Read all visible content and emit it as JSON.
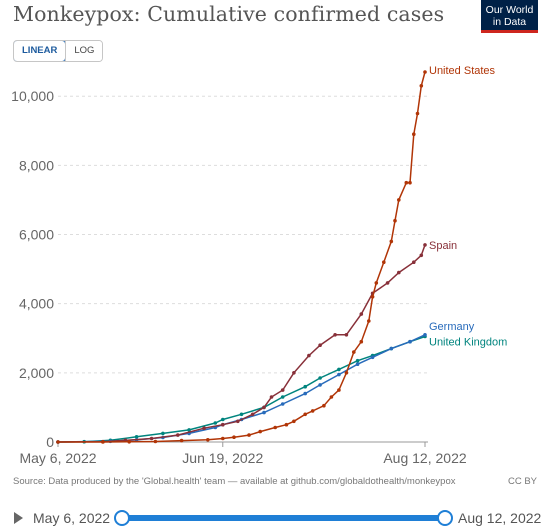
{
  "header": {
    "title": "Monkeypox: Cumulative confirmed cases",
    "logo_line1": "Our World",
    "logo_line2": "in Data"
  },
  "scale_toggle": {
    "linear": "LINEAR",
    "log": "LOG",
    "selected": "LINEAR"
  },
  "footer": {
    "source": "Source: Data produced by the 'Global.health' team — available at github.com/globaldothealth/monkeypox",
    "license": "CC BY"
  },
  "timeline": {
    "start": "May 6, 2022",
    "end": "Aug 12, 2022"
  },
  "chart_data": {
    "type": "line",
    "title": "Monkeypox: Cumulative confirmed cases",
    "ylim": [
      0,
      10700
    ],
    "yticks": [
      0,
      2000,
      4000,
      6000,
      8000,
      10000
    ],
    "ytick_labels": [
      "0",
      "2,000",
      "4,000",
      "6,000",
      "8,000",
      "10,000"
    ],
    "xlim": [
      "2022-05-06",
      "2022-08-12"
    ],
    "xticks": [
      "2022-05-06",
      "2022-06-19",
      "2022-08-12"
    ],
    "xtick_labels": [
      "May 6, 2022",
      "Jun 19, 2022",
      "Aug 12, 2022"
    ],
    "grid": "horizontal dashed",
    "legend": "labels at line ends",
    "series": [
      {
        "name": "United States",
        "color": "#b13507",
        "points": [
          [
            "2022-05-06",
            0
          ],
          [
            "2022-05-18",
            1
          ],
          [
            "2022-05-25",
            5
          ],
          [
            "2022-06-01",
            15
          ],
          [
            "2022-06-08",
            40
          ],
          [
            "2022-06-15",
            65
          ],
          [
            "2022-06-19",
            100
          ],
          [
            "2022-06-22",
            140
          ],
          [
            "2022-06-26",
            200
          ],
          [
            "2022-06-29",
            300
          ],
          [
            "2022-07-03",
            420
          ],
          [
            "2022-07-06",
            500
          ],
          [
            "2022-07-08",
            600
          ],
          [
            "2022-07-11",
            800
          ],
          [
            "2022-07-13",
            900
          ],
          [
            "2022-07-16",
            1050
          ],
          [
            "2022-07-18",
            1300
          ],
          [
            "2022-07-20",
            1500
          ],
          [
            "2022-07-22",
            2000
          ],
          [
            "2022-07-24",
            2600
          ],
          [
            "2022-07-26",
            2900
          ],
          [
            "2022-07-28",
            3500
          ],
          [
            "2022-07-29",
            4200
          ],
          [
            "2022-07-30",
            4600
          ],
          [
            "2022-08-01",
            5200
          ],
          [
            "2022-08-03",
            5800
          ],
          [
            "2022-08-04",
            6400
          ],
          [
            "2022-08-05",
            7000
          ],
          [
            "2022-08-07",
            7500
          ],
          [
            "2022-08-08",
            7500
          ],
          [
            "2022-08-09",
            8900
          ],
          [
            "2022-08-10",
            9500
          ],
          [
            "2022-08-11",
            10300
          ],
          [
            "2022-08-12",
            10700
          ]
        ]
      },
      {
        "name": "Spain",
        "color": "#883039",
        "points": [
          [
            "2022-05-06",
            0
          ],
          [
            "2022-05-18",
            10
          ],
          [
            "2022-05-24",
            50
          ],
          [
            "2022-05-31",
            100
          ],
          [
            "2022-06-07",
            200
          ],
          [
            "2022-06-14",
            400
          ],
          [
            "2022-06-19",
            500
          ],
          [
            "2022-06-23",
            600
          ],
          [
            "2022-06-27",
            800
          ],
          [
            "2022-06-30",
            1000
          ],
          [
            "2022-07-02",
            1300
          ],
          [
            "2022-07-05",
            1500
          ],
          [
            "2022-07-08",
            2000
          ],
          [
            "2022-07-12",
            2500
          ],
          [
            "2022-07-15",
            2800
          ],
          [
            "2022-07-19",
            3100
          ],
          [
            "2022-07-22",
            3100
          ],
          [
            "2022-07-26",
            3700
          ],
          [
            "2022-07-29",
            4300
          ],
          [
            "2022-08-02",
            4600
          ],
          [
            "2022-08-05",
            4900
          ],
          [
            "2022-08-09",
            5200
          ],
          [
            "2022-08-11",
            5400
          ],
          [
            "2022-08-12",
            5700
          ]
        ]
      },
      {
        "name": "Germany",
        "color": "#286bbb",
        "points": [
          [
            "2022-05-06",
            0
          ],
          [
            "2022-05-20",
            20
          ],
          [
            "2022-05-27",
            60
          ],
          [
            "2022-06-03",
            130
          ],
          [
            "2022-06-10",
            250
          ],
          [
            "2022-06-17",
            420
          ],
          [
            "2022-06-19",
            500
          ],
          [
            "2022-06-24",
            650
          ],
          [
            "2022-06-30",
            850
          ],
          [
            "2022-07-05",
            1100
          ],
          [
            "2022-07-11",
            1400
          ],
          [
            "2022-07-15",
            1650
          ],
          [
            "2022-07-20",
            1950
          ],
          [
            "2022-07-25",
            2250
          ],
          [
            "2022-07-29",
            2450
          ],
          [
            "2022-08-03",
            2700
          ],
          [
            "2022-08-08",
            2900
          ],
          [
            "2022-08-12",
            3100
          ]
        ]
      },
      {
        "name": "United Kingdom",
        "color": "#00847e",
        "points": [
          [
            "2022-05-06",
            0
          ],
          [
            "2022-05-13",
            10
          ],
          [
            "2022-05-20",
            50
          ],
          [
            "2022-05-27",
            150
          ],
          [
            "2022-06-03",
            250
          ],
          [
            "2022-06-10",
            350
          ],
          [
            "2022-06-17",
            550
          ],
          [
            "2022-06-19",
            650
          ],
          [
            "2022-06-24",
            800
          ],
          [
            "2022-06-30",
            1000
          ],
          [
            "2022-07-05",
            1300
          ],
          [
            "2022-07-11",
            1600
          ],
          [
            "2022-07-15",
            1850
          ],
          [
            "2022-07-20",
            2100
          ],
          [
            "2022-07-25",
            2350
          ],
          [
            "2022-07-29",
            2500
          ],
          [
            "2022-08-03",
            2700
          ],
          [
            "2022-08-08",
            2900
          ],
          [
            "2022-08-12",
            3050
          ]
        ]
      }
    ]
  }
}
